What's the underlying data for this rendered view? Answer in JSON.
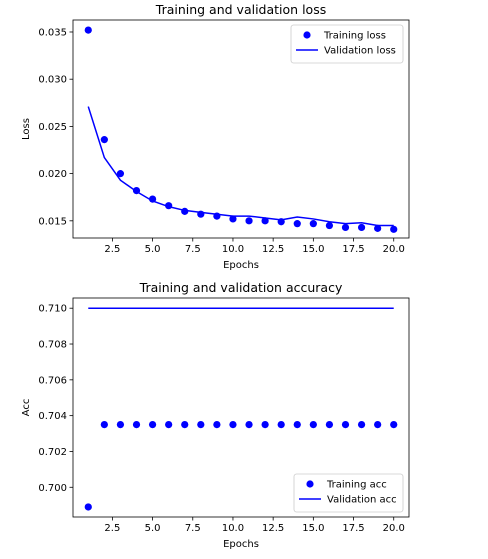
{
  "chart_data": [
    {
      "type": "line",
      "title": "Training and validation loss",
      "xlabel": "Epochs",
      "ylabel": "Loss",
      "xlim": [
        0.05,
        20.95
      ],
      "ylim": [
        0.01318,
        0.03627
      ],
      "xticks": [
        2.5,
        5.0,
        7.5,
        10.0,
        12.5,
        15.0,
        17.5,
        20.0
      ],
      "xtick_labels": [
        "2.5",
        "5.0",
        "7.5",
        "10.0",
        "12.5",
        "15.0",
        "17.5",
        "20.0"
      ],
      "yticks": [
        0.015,
        0.02,
        0.025,
        0.03,
        0.035
      ],
      "ytick_labels": [
        "0.015",
        "0.020",
        "0.025",
        "0.030",
        "0.035"
      ],
      "grid": false,
      "legend_position": "top-right",
      "x": [
        1,
        2,
        3,
        4,
        5,
        6,
        7,
        8,
        9,
        10,
        11,
        12,
        13,
        14,
        15,
        16,
        17,
        18,
        19,
        20
      ],
      "series": [
        {
          "name": "Training loss",
          "style": "markers",
          "color": "#0000ff",
          "values": [
            0.0352,
            0.0236,
            0.02,
            0.0182,
            0.0173,
            0.0166,
            0.016,
            0.0157,
            0.0155,
            0.0152,
            0.015,
            0.015,
            0.0149,
            0.0147,
            0.0147,
            0.0145,
            0.0143,
            0.0143,
            0.0142,
            0.0141
          ]
        },
        {
          "name": "Validation loss",
          "style": "line",
          "color": "#0000ff",
          "values": [
            0.0271,
            0.0217,
            0.0193,
            0.0181,
            0.0171,
            0.0165,
            0.0161,
            0.0159,
            0.0157,
            0.0155,
            0.0155,
            0.0153,
            0.0151,
            0.0154,
            0.0152,
            0.0149,
            0.0147,
            0.0148,
            0.0145,
            0.0145
          ]
        }
      ]
    },
    {
      "type": "line",
      "title": "Training and validation accuracy",
      "xlabel": "Epochs",
      "ylabel": "Acc",
      "xlim": [
        0.05,
        20.95
      ],
      "ylim": [
        0.69834,
        0.71057
      ],
      "xticks": [
        2.5,
        5.0,
        7.5,
        10.0,
        12.5,
        15.0,
        17.5,
        20.0
      ],
      "xtick_labels": [
        "2.5",
        "5.0",
        "7.5",
        "10.0",
        "12.5",
        "15.0",
        "17.5",
        "20.0"
      ],
      "yticks": [
        0.7,
        0.702,
        0.704,
        0.706,
        0.708,
        0.71
      ],
      "ytick_labels": [
        "0.700",
        "0.702",
        "0.704",
        "0.706",
        "0.708",
        "0.710"
      ],
      "grid": false,
      "legend_position": "bottom-right",
      "x": [
        1,
        2,
        3,
        4,
        5,
        6,
        7,
        8,
        9,
        10,
        11,
        12,
        13,
        14,
        15,
        16,
        17,
        18,
        19,
        20
      ],
      "series": [
        {
          "name": "Training acc",
          "style": "markers",
          "color": "#0000ff",
          "values": [
            0.6989,
            0.7035,
            0.7035,
            0.7035,
            0.7035,
            0.7035,
            0.7035,
            0.7035,
            0.7035,
            0.7035,
            0.7035,
            0.7035,
            0.7035,
            0.7035,
            0.7035,
            0.7035,
            0.7035,
            0.7035,
            0.7035,
            0.7035
          ]
        },
        {
          "name": "Validation acc",
          "style": "line",
          "color": "#0000ff",
          "values": [
            0.71,
            0.71,
            0.71,
            0.71,
            0.71,
            0.71,
            0.71,
            0.71,
            0.71,
            0.71,
            0.71,
            0.71,
            0.71,
            0.71,
            0.71,
            0.71,
            0.71,
            0.71,
            0.71,
            0.71
          ]
        }
      ]
    }
  ]
}
